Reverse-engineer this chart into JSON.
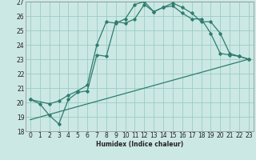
{
  "xlabel": "Humidex (Indice chaleur)",
  "xlim": [
    -0.5,
    23.5
  ],
  "ylim": [
    18,
    27
  ],
  "xticks": [
    0,
    1,
    2,
    3,
    4,
    5,
    6,
    7,
    8,
    9,
    10,
    11,
    12,
    13,
    14,
    15,
    16,
    17,
    18,
    19,
    20,
    21,
    22,
    23
  ],
  "yticks": [
    18,
    19,
    20,
    21,
    22,
    23,
    24,
    25,
    26,
    27
  ],
  "bg_color": "#cce8e4",
  "grid_color": "#99ccC8",
  "line_color": "#2e7d6e",
  "line1_x": [
    0,
    1,
    2,
    3,
    4,
    5,
    6,
    7,
    8,
    9,
    10,
    11,
    12,
    13,
    14,
    15,
    16,
    17,
    18,
    19,
    20,
    21,
    22,
    23
  ],
  "line1_y": [
    20.2,
    19.9,
    19.1,
    18.5,
    20.2,
    20.7,
    20.8,
    23.3,
    23.2,
    25.6,
    25.5,
    25.8,
    26.8,
    26.3,
    26.6,
    26.7,
    26.2,
    25.8,
    25.8,
    24.8,
    23.4,
    23.3,
    23.2,
    23.0
  ],
  "line2_x": [
    0,
    2,
    3,
    4,
    5,
    6,
    7,
    8,
    9,
    10,
    11,
    12,
    13,
    14,
    15,
    16,
    17,
    18,
    19,
    20,
    21,
    22,
    23
  ],
  "line2_y": [
    20.2,
    19.9,
    20.1,
    20.5,
    20.8,
    21.2,
    24.0,
    25.6,
    25.5,
    25.8,
    26.8,
    27.0,
    26.3,
    26.6,
    26.9,
    26.6,
    26.2,
    25.6,
    25.6,
    24.8,
    23.4,
    23.2,
    23.0
  ],
  "line3_x": [
    0,
    23
  ],
  "line3_y": [
    18.8,
    23.0
  ]
}
